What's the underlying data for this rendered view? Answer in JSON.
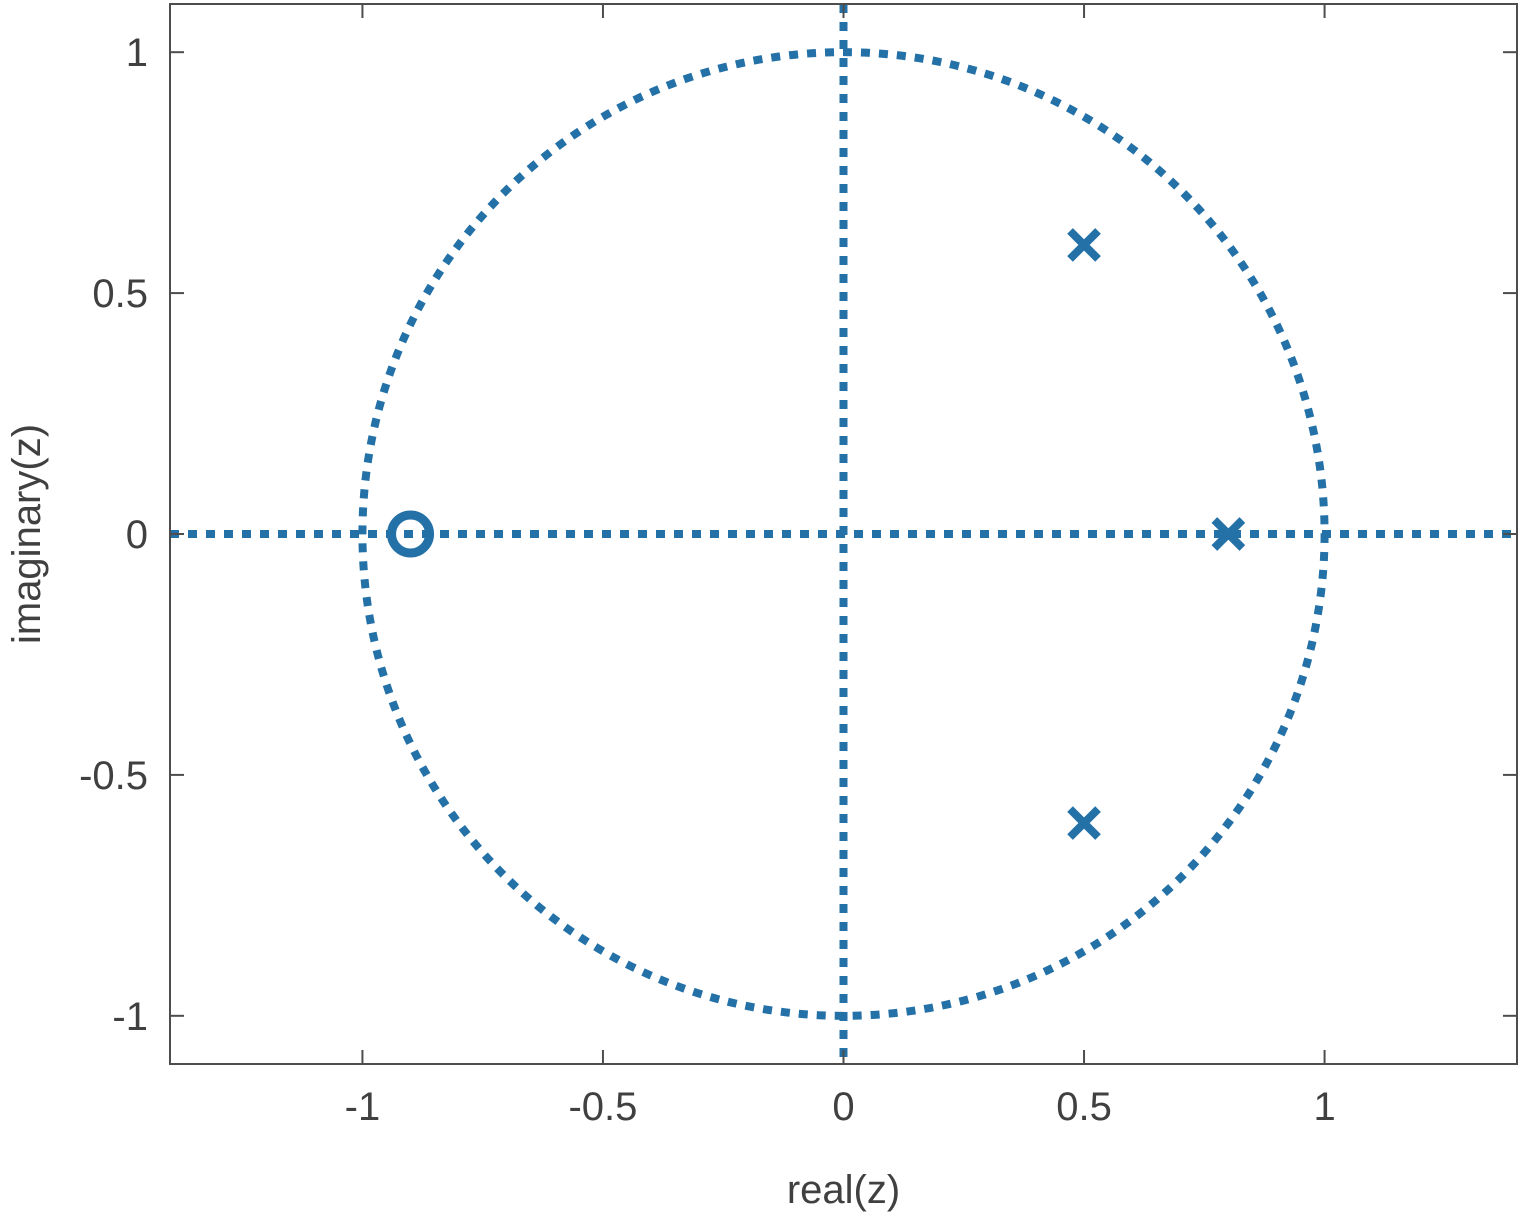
{
  "chart_data": {
    "type": "scatter",
    "title": "",
    "xlabel": "real(z)",
    "ylabel": "imaginary(z)",
    "xlim": [
      -1.4,
      1.4
    ],
    "ylim": [
      -1.1,
      1.1
    ],
    "xticks": [
      -1,
      -0.5,
      0,
      0.5,
      1
    ],
    "xtick_labels": [
      "-1",
      "-0.5",
      "0",
      "0.5",
      "1"
    ],
    "yticks": [
      -1,
      -0.5,
      0,
      0.5,
      1
    ],
    "ytick_labels": [
      "-1",
      "-0.5",
      "0",
      "0.5",
      "1"
    ],
    "grid": false,
    "unit_circle": {
      "center": [
        0,
        0
      ],
      "radius": 1,
      "style": "dotted"
    },
    "reference_axes": {
      "horizontal_at_y": 0,
      "vertical_at_x": 0,
      "style": "dotted"
    },
    "zeros": [
      {
        "x": -0.9,
        "y": 0
      }
    ],
    "poles": [
      {
        "x": 0.5,
        "y": 0.6
      },
      {
        "x": 0.8,
        "y": 0
      },
      {
        "x": 0.5,
        "y": -0.6
      }
    ],
    "color": "#2471a8"
  }
}
